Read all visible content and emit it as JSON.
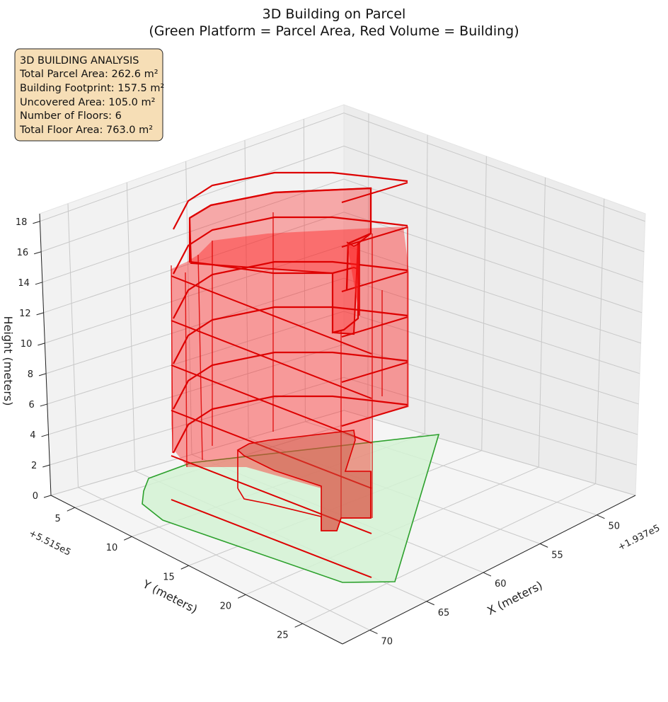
{
  "chart_data": {
    "type": "3d-surface",
    "title": "3D Building on Parcel",
    "subtitle": "(Green Platform = Parcel Area, Red Volume = Building)",
    "xlabel": "X (meters)",
    "ylabel": "Y (meters)",
    "zlabel": "Height (meters)",
    "x_offset": "+1.937e5",
    "y_offset": "+5.515e5",
    "x_ticks": [
      50,
      55,
      60,
      65,
      70
    ],
    "y_ticks": [
      5,
      10,
      15,
      20,
      25
    ],
    "z_ticks": [
      0,
      2,
      4,
      6,
      8,
      10,
      12,
      14,
      16,
      18
    ],
    "grid": true,
    "colors": {
      "parcel_fill": "#d4f2d4",
      "parcel_edge": "#2ca02c",
      "building_fill": "#ff2020",
      "building_edge": "#dd0000",
      "info_box_bg": "#f6deb6"
    },
    "info_box": {
      "lines": [
        "3D BUILDING ANALYSIS",
        "Total Parcel Area: 262.6 m²",
        "Building Footprint: 157.5 m²",
        "Uncovered Area: 105.0 m²",
        "Number of Floors: 6",
        "Total Floor Area: 763.0 m²"
      ]
    },
    "floors": 6
  }
}
